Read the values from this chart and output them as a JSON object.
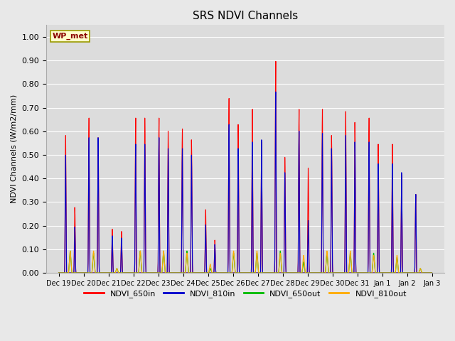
{
  "title": "SRS NDVI Channels",
  "ylabel": "NDVI Channels (W/m2/mm)",
  "fig_facecolor": "#e8e8e8",
  "ax_facecolor": "#dcdcdc",
  "annotation_text": "WP_met",
  "annotation_bg": "#ffffcc",
  "annotation_fg": "#8b0000",
  "annotation_border": "#999900",
  "ylim": [
    0.0,
    1.05
  ],
  "yticks": [
    0.0,
    0.1,
    0.2,
    0.3,
    0.4,
    0.5,
    0.6,
    0.7,
    0.8,
    0.9,
    1.0
  ],
  "legend": [
    "NDVI_650in",
    "NDVI_810in",
    "NDVI_650out",
    "NDVI_810out"
  ],
  "legend_colors": [
    "#ff0000",
    "#0000cc",
    "#00bb00",
    "#ffaa00"
  ],
  "xtick_labels": [
    "Dec 19",
    "Dec 20",
    "Dec 21",
    "Dec 22",
    "Dec 23",
    "Dec 24",
    "Dec 25",
    "Dec 26",
    "Dec 27",
    "Dec 28",
    "Dec 29",
    "Dec 30",
    "Dec 31",
    "Jan 1",
    "Jan 2",
    "Jan 3"
  ],
  "xtick_positions": [
    0,
    1,
    2,
    3,
    4,
    5,
    6,
    7,
    8,
    9,
    10,
    11,
    12,
    13,
    14,
    15
  ],
  "peaks_650in": [
    0.63,
    0.71,
    0.2,
    0.71,
    0.71,
    0.66,
    0.29,
    0.8,
    0.75,
    0.97,
    0.75,
    0.75,
    0.74,
    0.71,
    0.59,
    0.36
  ],
  "peaks2_650in": [
    0.3,
    0.62,
    0.19,
    0.71,
    0.65,
    0.61,
    0.15,
    0.68,
    0.6,
    0.53,
    0.48,
    0.63,
    0.69,
    0.59,
    0.45,
    0.0
  ],
  "peaks_810in": [
    0.54,
    0.62,
    0.17,
    0.59,
    0.62,
    0.57,
    0.22,
    0.68,
    0.6,
    0.83,
    0.65,
    0.64,
    0.63,
    0.6,
    0.5,
    0.36
  ],
  "peaks2_810in": [
    0.21,
    0.62,
    0.16,
    0.59,
    0.57,
    0.54,
    0.13,
    0.57,
    0.61,
    0.46,
    0.24,
    0.57,
    0.6,
    0.5,
    0.46,
    0.0
  ],
  "peaks_650out": [
    0.1,
    0.09,
    0.02,
    0.1,
    0.1,
    0.1,
    0.02,
    0.09,
    0.09,
    0.1,
    0.05,
    0.09,
    0.09,
    0.09,
    0.07,
    0.02
  ],
  "peaks_810out": [
    0.1,
    0.1,
    0.02,
    0.1,
    0.1,
    0.09,
    0.04,
    0.1,
    0.1,
    0.09,
    0.08,
    0.1,
    0.1,
    0.08,
    0.08,
    0.02
  ]
}
